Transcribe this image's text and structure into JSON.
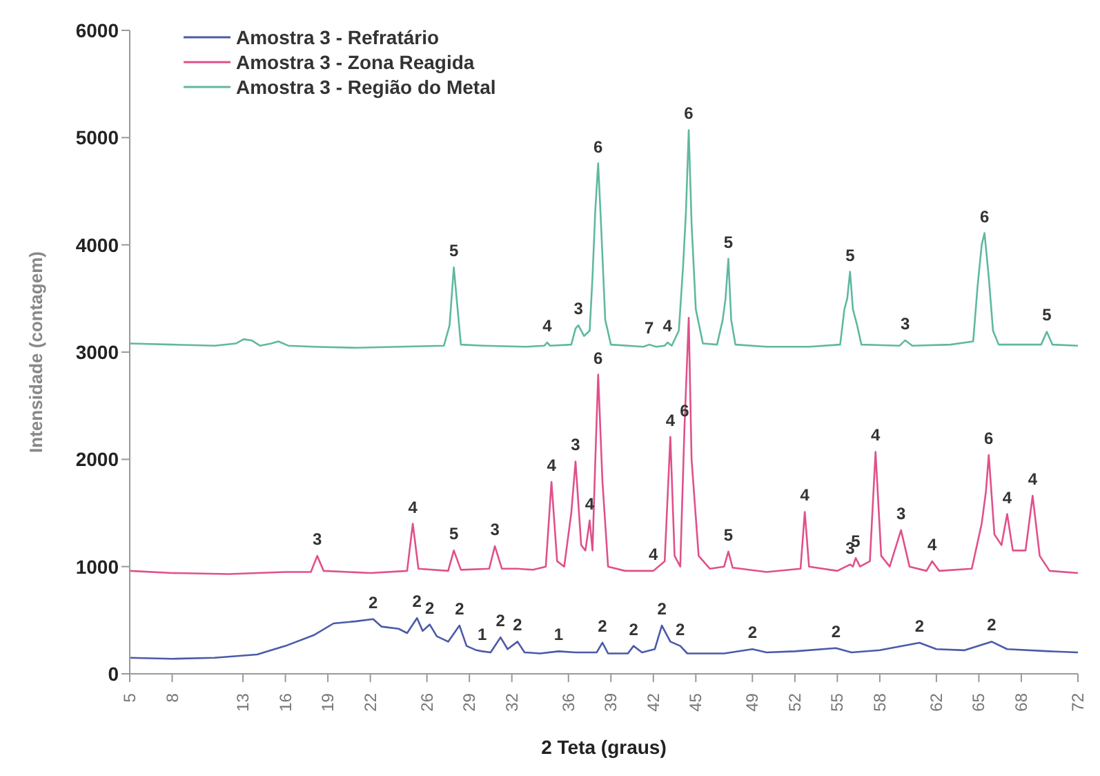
{
  "chart_data": {
    "type": "line",
    "xlabel": "2 Teta (graus)",
    "ylabel": "Intensidade (contagem)",
    "xlim": [
      5,
      72
    ],
    "xticks": [
      5,
      8,
      13,
      16,
      19,
      22,
      26,
      29,
      32,
      36,
      39,
      42,
      45,
      49,
      52,
      55,
      58,
      62,
      65,
      68,
      72
    ],
    "ylim": [
      0,
      6000
    ],
    "yticks": [
      0,
      1000,
      2000,
      3000,
      4000,
      5000,
      6000
    ],
    "grid": false,
    "legend": "top left",
    "marker": "none",
    "series": [
      {
        "name": "Amostra 3 - Refratário",
        "color": "#4b5aa8",
        "x": [
          5,
          8,
          11,
          14,
          16,
          18,
          19.4,
          21,
          22.2,
          22.8,
          24.0,
          24.6,
          25.3,
          25.7,
          26.2,
          26.7,
          27.5,
          28.3,
          28.8,
          29.5,
          29.9,
          30.5,
          31.2,
          31.7,
          32.4,
          32.9,
          34,
          35.3,
          36.5,
          38.0,
          38.4,
          38.8,
          40.2,
          40.6,
          41.2,
          42.1,
          42.6,
          43.2,
          43.9,
          44.4,
          47,
          49.0,
          50,
          52,
          54.9,
          56,
          58,
          60.8,
          62,
          64,
          65.9,
          67,
          70,
          72
        ],
        "values": [
          150,
          140,
          150,
          180,
          260,
          360,
          470,
          490,
          510,
          440,
          420,
          380,
          520,
          400,
          460,
          350,
          300,
          450,
          260,
          220,
          210,
          200,
          340,
          230,
          300,
          200,
          190,
          210,
          200,
          200,
          290,
          190,
          190,
          260,
          200,
          230,
          450,
          300,
          260,
          190,
          190,
          230,
          200,
          210,
          240,
          200,
          220,
          290,
          230,
          220,
          300,
          230,
          210,
          200
        ]
      },
      {
        "name": "Amostra 3 - Zona Reagida",
        "color": "#e0508a",
        "x": [
          5,
          8,
          12,
          16,
          17.8,
          18.25,
          18.7,
          22,
          24.6,
          25.0,
          25.4,
          27.5,
          27.9,
          28.4,
          30.4,
          30.8,
          31.3,
          32.4,
          33.5,
          34.4,
          34.8,
          35.2,
          35.7,
          36.2,
          36.5,
          36.9,
          37.2,
          37.5,
          37.7,
          37.9,
          38.1,
          38.4,
          38.8,
          40,
          42,
          42.8,
          43.2,
          43.5,
          43.9,
          44.2,
          44.5,
          44.7,
          45.2,
          46,
          47.0,
          47.3,
          47.6,
          50,
          52.4,
          52.7,
          53.0,
          55,
          55.9,
          56.1,
          56.3,
          56.6,
          57.3,
          57.7,
          58.1,
          58.7,
          59.5,
          60.1,
          61.3,
          61.7,
          62.2,
          64.5,
          65.2,
          65.5,
          65.7,
          66.1,
          66.6,
          67.0,
          67.4,
          68.3,
          68.8,
          69.3,
          70,
          72
        ],
        "values": [
          960,
          940,
          930,
          950,
          950,
          1100,
          960,
          940,
          960,
          1400,
          980,
          960,
          1150,
          970,
          980,
          1190,
          980,
          980,
          970,
          1000,
          1790,
          1050,
          1000,
          1500,
          1980,
          1200,
          1150,
          1430,
          1150,
          2000,
          2790,
          1800,
          1000,
          960,
          960,
          1050,
          2210,
          1100,
          1000,
          2300,
          3320,
          2000,
          1100,
          980,
          1000,
          1140,
          990,
          950,
          980,
          1510,
          1000,
          960,
          1020,
          1000,
          1080,
          1000,
          1050,
          2070,
          1100,
          1000,
          1340,
          1000,
          960,
          1050,
          960,
          980,
          1400,
          1700,
          2040,
          1300,
          1200,
          1490,
          1150,
          1150,
          1660,
          1100,
          960,
          940
        ]
      },
      {
        "name": "Amostra 3 - Região do Metal",
        "color": "#5fb8a0",
        "x": [
          5,
          8,
          11,
          12.5,
          13.05,
          13.6,
          14.2,
          15.0,
          15.5,
          16.2,
          18,
          21,
          24,
          27.2,
          27.6,
          27.9,
          28.1,
          28.4,
          30,
          33,
          34.3,
          34.5,
          34.7,
          36.2,
          36.5,
          36.7,
          37.1,
          37.5,
          37.7,
          37.9,
          38.1,
          38.3,
          38.6,
          39,
          41.3,
          41.7,
          42.2,
          42.8,
          43.0,
          43.3,
          43.8,
          44.1,
          44.3,
          44.5,
          44.7,
          45.0,
          45.5,
          46.5,
          46.9,
          47.1,
          47.3,
          47.5,
          47.8,
          50,
          53,
          55.2,
          55.5,
          55.7,
          55.9,
          56.1,
          56.4,
          56.7,
          59.4,
          59.8,
          60.3,
          63,
          64.6,
          64.9,
          65.2,
          65.4,
          65.7,
          66.0,
          66.4,
          69.4,
          69.8,
          70.2,
          72
        ],
        "values": [
          3080,
          3070,
          3060,
          3080,
          3120,
          3110,
          3060,
          3080,
          3100,
          3060,
          3050,
          3040,
          3050,
          3060,
          3250,
          3790,
          3500,
          3070,
          3060,
          3050,
          3060,
          3090,
          3060,
          3070,
          3220,
          3250,
          3150,
          3200,
          3700,
          4330,
          4760,
          4200,
          3300,
          3070,
          3050,
          3070,
          3050,
          3060,
          3090,
          3060,
          3200,
          3800,
          4300,
          5070,
          4200,
          3400,
          3080,
          3070,
          3300,
          3500,
          3870,
          3300,
          3070,
          3050,
          3050,
          3070,
          3400,
          3500,
          3750,
          3400,
          3250,
          3070,
          3060,
          3110,
          3060,
          3070,
          3100,
          3600,
          4000,
          4110,
          3700,
          3200,
          3070,
          3070,
          3190,
          3070,
          3060
        ]
      }
    ],
    "annotations": [
      {
        "text": "5",
        "x": 27.9,
        "y": 3790
      },
      {
        "text": "4",
        "x": 34.5,
        "y": 3090
      },
      {
        "text": "3",
        "x": 36.7,
        "y": 3250
      },
      {
        "text": "6",
        "x": 38.1,
        "y": 4760
      },
      {
        "text": "7",
        "x": 41.7,
        "y": 3070
      },
      {
        "text": "4",
        "x": 43.0,
        "y": 3090
      },
      {
        "text": "6",
        "x": 44.5,
        "y": 5070
      },
      {
        "text": "5",
        "x": 47.3,
        "y": 3870
      },
      {
        "text": "5",
        "x": 55.9,
        "y": 3750
      },
      {
        "text": "3",
        "x": 59.8,
        "y": 3110
      },
      {
        "text": "6",
        "x": 65.4,
        "y": 4110
      },
      {
        "text": "5",
        "x": 69.8,
        "y": 3190
      },
      {
        "text": "3",
        "x": 18.25,
        "y": 1100
      },
      {
        "text": "4",
        "x": 25.0,
        "y": 1400
      },
      {
        "text": "5",
        "x": 27.9,
        "y": 1150
      },
      {
        "text": "3",
        "x": 30.8,
        "y": 1190
      },
      {
        "text": "4",
        "x": 34.8,
        "y": 1790
      },
      {
        "text": "3",
        "x": 36.5,
        "y": 1980
      },
      {
        "text": "4",
        "x": 37.5,
        "y": 1430
      },
      {
        "text": "6",
        "x": 38.1,
        "y": 2790
      },
      {
        "text": "4",
        "x": 42,
        "y": 960
      },
      {
        "text": "4",
        "x": 43.2,
        "y": 2210
      },
      {
        "text": "6",
        "x": 44.2,
        "y": 2300
      },
      {
        "text": "5",
        "x": 47.3,
        "y": 1140
      },
      {
        "text": "4",
        "x": 52.7,
        "y": 1510
      },
      {
        "text": "3",
        "x": 55.9,
        "y": 1020
      },
      {
        "text": "5",
        "x": 56.3,
        "y": 1080
      },
      {
        "text": "4",
        "x": 57.7,
        "y": 2070
      },
      {
        "text": "3",
        "x": 59.5,
        "y": 1340
      },
      {
        "text": "4",
        "x": 61.7,
        "y": 1050
      },
      {
        "text": "6",
        "x": 65.7,
        "y": 2040
      },
      {
        "text": "4",
        "x": 67.0,
        "y": 1490
      },
      {
        "text": "4",
        "x": 68.8,
        "y": 1660
      },
      {
        "text": "2",
        "x": 22.2,
        "y": 510
      },
      {
        "text": "2",
        "x": 25.3,
        "y": 520
      },
      {
        "text": "2",
        "x": 26.2,
        "y": 460
      },
      {
        "text": "2",
        "x": 28.3,
        "y": 450
      },
      {
        "text": "1",
        "x": 29.9,
        "y": 210
      },
      {
        "text": "2",
        "x": 31.2,
        "y": 340
      },
      {
        "text": "2",
        "x": 32.4,
        "y": 300
      },
      {
        "text": "1",
        "x": 35.3,
        "y": 210
      },
      {
        "text": "2",
        "x": 38.4,
        "y": 290
      },
      {
        "text": "2",
        "x": 40.6,
        "y": 260
      },
      {
        "text": "2",
        "x": 42.6,
        "y": 450
      },
      {
        "text": "2",
        "x": 43.9,
        "y": 260
      },
      {
        "text": "2",
        "x": 49.0,
        "y": 230
      },
      {
        "text": "2",
        "x": 54.9,
        "y": 240
      },
      {
        "text": "2",
        "x": 60.8,
        "y": 290
      },
      {
        "text": "2",
        "x": 65.9,
        "y": 300
      }
    ]
  }
}
